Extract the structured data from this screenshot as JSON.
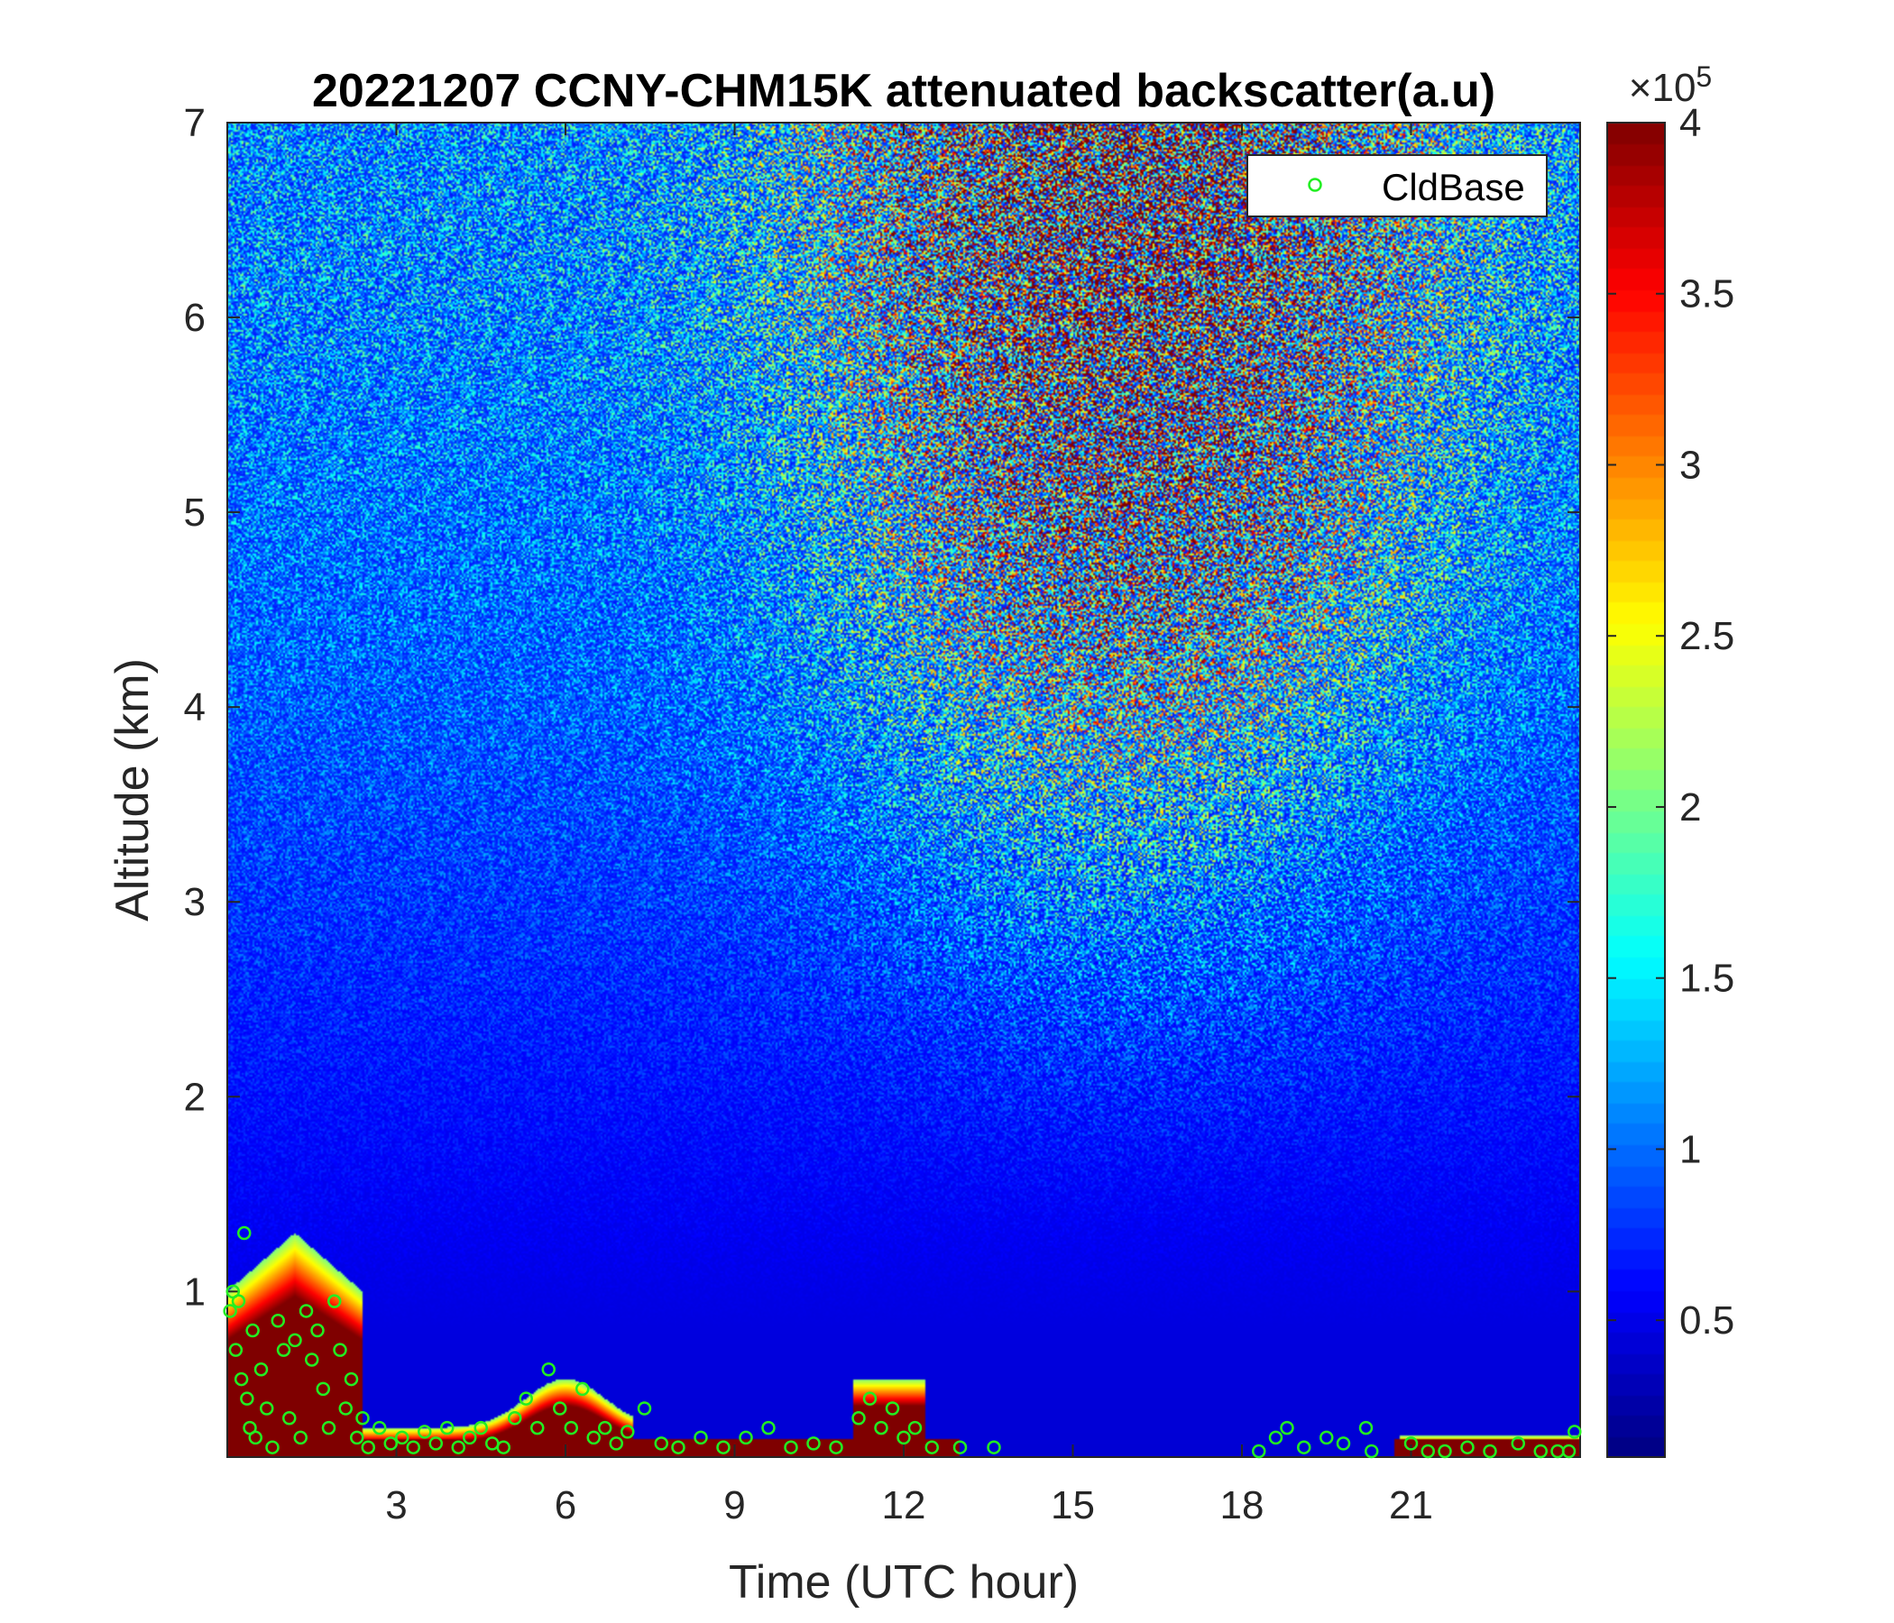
{
  "chart_data": {
    "type": "heatmap",
    "title": "20221207 CCNY-CHM15K attenuated backscatter(a.u)",
    "xlabel": "Time (UTC hour)",
    "ylabel": "Altitude (km)",
    "xlim": [
      0,
      24
    ],
    "ylim": [
      0.15,
      7
    ],
    "x_ticks": [
      3,
      6,
      9,
      12,
      15,
      18,
      21
    ],
    "x_tick_labels": [
      "3",
      "6",
      "9",
      "12",
      "15",
      "18",
      "21"
    ],
    "y_ticks": [
      1,
      2,
      3,
      4,
      5,
      6,
      7
    ],
    "y_tick_labels": [
      "1",
      "2",
      "3",
      "4",
      "5",
      "6",
      "7"
    ],
    "colorbar": {
      "colormap": "jet",
      "clim": [
        10000,
        400000
      ],
      "ticks": [
        0.5,
        1,
        1.5,
        2,
        2.5,
        3,
        3.5,
        4
      ],
      "tick_labels": [
        "0.5",
        "1",
        "1.5",
        "2",
        "2.5",
        "3",
        "3.5",
        "4"
      ],
      "exponent_base": "×10",
      "exponent_power": "5"
    },
    "legend": {
      "position": "top-right",
      "entries": [
        {
          "label": "CldBase",
          "marker": "circle",
          "color": "#22ee22"
        }
      ]
    },
    "series": [
      {
        "name": "CldBase",
        "marker_color": "#22ee22",
        "x": [
          0.05,
          0.1,
          0.15,
          0.2,
          0.25,
          0.3,
          0.35,
          0.4,
          0.45,
          0.5,
          0.6,
          0.7,
          0.8,
          0.9,
          1.0,
          1.1,
          1.2,
          1.3,
          1.4,
          1.5,
          1.6,
          1.7,
          1.8,
          1.9,
          2.0,
          2.1,
          2.2,
          2.3,
          2.4,
          2.5,
          2.7,
          2.9,
          3.1,
          3.3,
          3.5,
          3.7,
          3.9,
          4.1,
          4.3,
          4.5,
          4.7,
          4.9,
          5.1,
          5.3,
          5.5,
          5.7,
          5.9,
          6.1,
          6.3,
          6.5,
          6.7,
          6.9,
          7.1,
          7.4,
          7.7,
          8.0,
          8.4,
          8.8,
          9.2,
          9.6,
          10.0,
          10.4,
          10.8,
          11.2,
          11.4,
          11.6,
          11.8,
          12.0,
          12.2,
          12.5,
          13.0,
          13.6,
          18.3,
          18.6,
          18.8,
          19.1,
          19.5,
          19.8,
          20.2,
          20.3,
          21.0,
          21.3,
          21.6,
          22.0,
          22.4,
          22.9,
          23.3,
          23.6,
          23.8,
          23.9
        ],
        "y": [
          0.9,
          1.0,
          0.7,
          0.95,
          0.55,
          1.3,
          0.45,
          0.3,
          0.8,
          0.25,
          0.6,
          0.4,
          0.2,
          0.85,
          0.7,
          0.35,
          0.75,
          0.25,
          0.9,
          0.65,
          0.8,
          0.5,
          0.3,
          0.95,
          0.7,
          0.4,
          0.55,
          0.25,
          0.35,
          0.2,
          0.3,
          0.22,
          0.25,
          0.2,
          0.28,
          0.22,
          0.3,
          0.2,
          0.25,
          0.3,
          0.22,
          0.2,
          0.35,
          0.45,
          0.3,
          0.6,
          0.4,
          0.3,
          0.5,
          0.25,
          0.3,
          0.22,
          0.28,
          0.4,
          0.22,
          0.2,
          0.25,
          0.2,
          0.25,
          0.3,
          0.2,
          0.22,
          0.2,
          0.35,
          0.45,
          0.3,
          0.4,
          0.25,
          0.3,
          0.2,
          0.2,
          0.2,
          0.18,
          0.25,
          0.3,
          0.2,
          0.25,
          0.22,
          0.3,
          0.18,
          0.22,
          0.18,
          0.18,
          0.2,
          0.18,
          0.22,
          0.18,
          0.18,
          0.18,
          0.28
        ]
      }
    ]
  }
}
